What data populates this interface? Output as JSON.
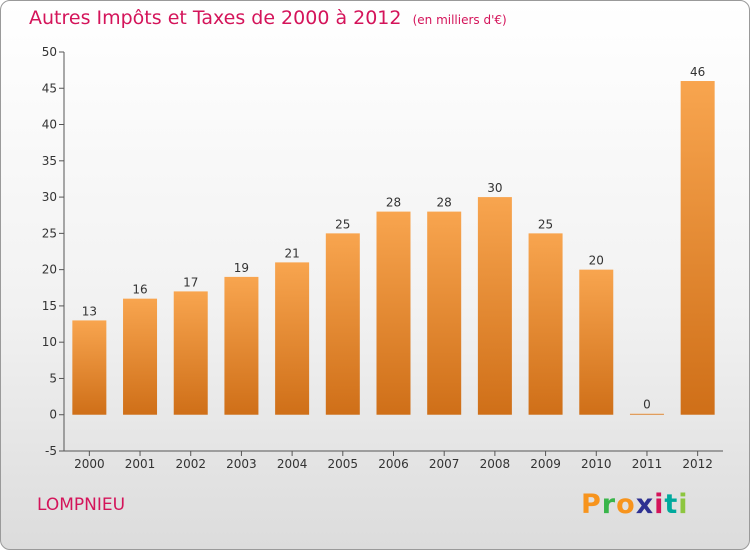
{
  "title": "Autres Impôts et Taxes de 2000 à 2012",
  "unit_note": "(en milliers d'€)",
  "commune": "LOMPNIEU",
  "logo": {
    "letters": [
      "P",
      "r",
      "o",
      "x",
      "i",
      "t",
      "i"
    ],
    "colors": [
      "#f7941d",
      "#39b54a",
      "#f7941d",
      "#2e3192",
      "#d4145a",
      "#00a99d",
      "#8dc63f"
    ]
  },
  "colors": {
    "bar_top": "#f8a54f",
    "bar_bottom": "#cf6f18",
    "title": "#d4145a"
  },
  "chart_data": {
    "type": "bar",
    "categories": [
      "2000",
      "2001",
      "2002",
      "2003",
      "2004",
      "2005",
      "2006",
      "2007",
      "2008",
      "2009",
      "2010",
      "2011",
      "2012"
    ],
    "values": [
      13,
      16,
      17,
      19,
      21,
      25,
      28,
      28,
      30,
      25,
      20,
      0,
      46
    ],
    "title": "Autres Impôts et Taxes de 2000 à 2012",
    "xlabel": "",
    "ylabel": "",
    "ylim": [
      -5,
      50
    ],
    "yticks": [
      "-5",
      "0",
      "5",
      "10",
      "15",
      "20",
      "25",
      "30",
      "35",
      "40",
      "45",
      "50"
    ],
    "grid": false,
    "data_labels": true
  }
}
